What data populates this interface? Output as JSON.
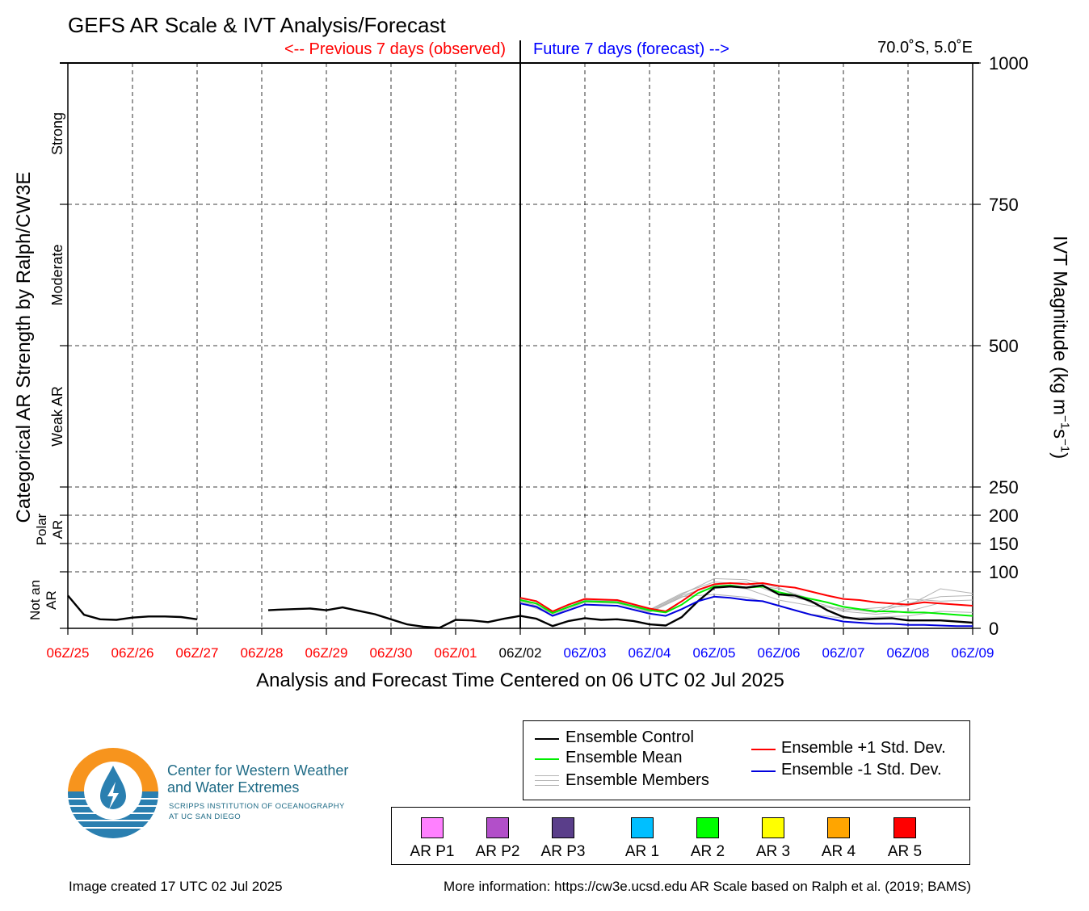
{
  "title": "GEFS AR Scale & IVT Analysis/Forecast",
  "header": {
    "previous_label": "<-- Previous 7 days (observed)",
    "future_label": "Future 7 days (forecast) -->",
    "location": "70.0˚S, 5.0˚E"
  },
  "colors": {
    "observed": "#ff0000",
    "forecast": "#0000ff",
    "current": "#000000"
  },
  "chart_data": {
    "type": "line",
    "title": "GEFS AR Scale & IVT Analysis/Forecast",
    "xlabel": "Analysis and Forecast Time Centered on 06 UTC 02 Jul 2025",
    "ylabel_left": "Categorical AR Strength by Ralph/CW3E",
    "ylabel_right": "IVT Magnitude (kg m⁻¹s⁻¹)",
    "x_ticks": [
      {
        "label": "06Z/25",
        "day": 0,
        "kind": "observed"
      },
      {
        "label": "06Z/26",
        "day": 1,
        "kind": "observed"
      },
      {
        "label": "06Z/27",
        "day": 2,
        "kind": "observed"
      },
      {
        "label": "06Z/28",
        "day": 3,
        "kind": "observed"
      },
      {
        "label": "06Z/29",
        "day": 4,
        "kind": "observed"
      },
      {
        "label": "06Z/30",
        "day": 5,
        "kind": "observed"
      },
      {
        "label": "06Z/01",
        "day": 6,
        "kind": "observed"
      },
      {
        "label": "06Z/02",
        "day": 7,
        "kind": "current"
      },
      {
        "label": "06Z/03",
        "day": 8,
        "kind": "forecast"
      },
      {
        "label": "06Z/04",
        "day": 9,
        "kind": "forecast"
      },
      {
        "label": "06Z/05",
        "day": 10,
        "kind": "forecast"
      },
      {
        "label": "06Z/06",
        "day": 11,
        "kind": "forecast"
      },
      {
        "label": "06Z/07",
        "day": 12,
        "kind": "forecast"
      },
      {
        "label": "06Z/08",
        "day": 13,
        "kind": "forecast"
      },
      {
        "label": "06Z/09",
        "day": 14,
        "kind": "forecast"
      }
    ],
    "y_ticks": [
      {
        "label": "1000",
        "value": 1000
      },
      {
        "label": "750",
        "value": 750
      },
      {
        "label": "500",
        "value": 500
      },
      {
        "label": "250",
        "value": 250
      },
      {
        "label": "200",
        "value": 200
      },
      {
        "label": "150",
        "value": 150
      },
      {
        "label": "100",
        "value": 100
      },
      {
        "label": "0",
        "value": 0
      }
    ],
    "y_gridlines": [
      100,
      150,
      200,
      250,
      500,
      750
    ],
    "ylim": [
      0,
      1000
    ],
    "xlim": [
      0,
      14
    ],
    "categories": [
      {
        "label": "Strong",
        "center": 875
      },
      {
        "label": "Moderate",
        "center": 625
      },
      {
        "label": "Weak AR",
        "center": 375
      },
      {
        "label": "Polar AR",
        "center": 175
      },
      {
        "label": "Not an AR",
        "center": 50
      }
    ],
    "series": [
      {
        "name": "Ensemble Members",
        "color": "#b4b4b4",
        "members": [
          [
            [
              7,
              54
            ],
            [
              7.5,
              30
            ],
            [
              8,
              52
            ],
            [
              8.5,
              50
            ],
            [
              9,
              33
            ],
            [
              9.5,
              62
            ],
            [
              10,
              82
            ],
            [
              10.5,
              78
            ],
            [
              11,
              70
            ],
            [
              11.5,
              52
            ],
            [
              12,
              38
            ],
            [
              12.5,
              30
            ],
            [
              13,
              52
            ],
            [
              13.5,
              48
            ],
            [
              14,
              50
            ]
          ],
          [
            [
              7,
              48
            ],
            [
              7.5,
              26
            ],
            [
              8,
              48
            ],
            [
              8.5,
              46
            ],
            [
              9,
              30
            ],
            [
              9.5,
              58
            ],
            [
              10,
              76
            ],
            [
              10.5,
              70
            ],
            [
              11,
              50
            ],
            [
              11.5,
              40
            ],
            [
              12,
              35
            ],
            [
              12.5,
              28
            ],
            [
              13,
              44
            ],
            [
              13.5,
              56
            ],
            [
              14,
              58
            ]
          ],
          [
            [
              7,
              46
            ],
            [
              7.5,
              24
            ],
            [
              8,
              46
            ],
            [
              8.5,
              44
            ],
            [
              9,
              28
            ],
            [
              9.5,
              55
            ],
            [
              10,
              78
            ],
            [
              10.5,
              82
            ],
            [
              11,
              60
            ],
            [
              11.5,
              48
            ],
            [
              12,
              32
            ],
            [
              12.5,
              36
            ],
            [
              13,
              40
            ],
            [
              13.5,
              70
            ],
            [
              14,
              62
            ]
          ],
          [
            [
              7,
              50
            ],
            [
              7.5,
              28
            ],
            [
              8,
              50
            ],
            [
              8.5,
              48
            ],
            [
              9,
              32
            ],
            [
              9.5,
              60
            ],
            [
              10,
              88
            ],
            [
              10.5,
              86
            ],
            [
              11,
              72
            ],
            [
              11.5,
              45
            ],
            [
              12,
              30
            ],
            [
              12.5,
              25
            ],
            [
              13,
              30
            ],
            [
              13.5,
              45
            ],
            [
              14,
              40
            ]
          ],
          [
            [
              7,
              52
            ],
            [
              7.5,
              27
            ],
            [
              8,
              49
            ],
            [
              8.5,
              47
            ],
            [
              9,
              29
            ],
            [
              9.5,
              56
            ],
            [
              10,
              60
            ],
            [
              10.5,
              55
            ],
            [
              11,
              40
            ],
            [
              11.5,
              25
            ],
            [
              12,
              18
            ],
            [
              12.5,
              20
            ],
            [
              13,
              22
            ],
            [
              13.5,
              30
            ],
            [
              14,
              28
            ]
          ]
        ]
      },
      {
        "name": "Ensemble +1 Std. Dev.",
        "color": "#ff0000",
        "points": [
          [
            7,
            54
          ],
          [
            7.25,
            48
          ],
          [
            7.5,
            30
          ],
          [
            7.75,
            42
          ],
          [
            8,
            52
          ],
          [
            8.5,
            50
          ],
          [
            9,
            35
          ],
          [
            9.25,
            30
          ],
          [
            9.5,
            48
          ],
          [
            9.75,
            68
          ],
          [
            10,
            78
          ],
          [
            10.25,
            80
          ],
          [
            10.5,
            78
          ],
          [
            10.75,
            80
          ],
          [
            11,
            75
          ],
          [
            11.25,
            72
          ],
          [
            11.5,
            65
          ],
          [
            11.75,
            58
          ],
          [
            12,
            52
          ],
          [
            12.25,
            50
          ],
          [
            12.5,
            46
          ],
          [
            12.75,
            44
          ],
          [
            13,
            42
          ],
          [
            13.25,
            46
          ],
          [
            13.5,
            44
          ],
          [
            13.75,
            42
          ],
          [
            14,
            40
          ]
        ]
      },
      {
        "name": "Ensemble Mean",
        "color": "#00ee00",
        "points": [
          [
            7,
            50
          ],
          [
            7.25,
            44
          ],
          [
            7.5,
            27
          ],
          [
            7.75,
            38
          ],
          [
            8,
            48
          ],
          [
            8.5,
            46
          ],
          [
            9,
            32
          ],
          [
            9.25,
            28
          ],
          [
            9.5,
            42
          ],
          [
            9.75,
            62
          ],
          [
            10,
            74
          ],
          [
            10.25,
            76
          ],
          [
            10.5,
            72
          ],
          [
            10.75,
            74
          ],
          [
            11,
            64
          ],
          [
            11.25,
            58
          ],
          [
            11.5,
            52
          ],
          [
            11.75,
            46
          ],
          [
            12,
            38
          ],
          [
            12.25,
            34
          ],
          [
            12.5,
            30
          ],
          [
            12.75,
            30
          ],
          [
            13,
            28
          ],
          [
            13.25,
            28
          ],
          [
            13.5,
            26
          ],
          [
            13.75,
            24
          ],
          [
            14,
            22
          ]
        ]
      },
      {
        "name": "Ensemble Control",
        "color": "#000000",
        "points": [
          [
            0,
            58
          ],
          [
            0.25,
            24
          ],
          [
            0.5,
            16
          ],
          [
            0.75,
            15
          ],
          [
            1,
            19
          ],
          [
            1.25,
            21
          ],
          [
            1.5,
            21
          ],
          [
            1.75,
            20
          ],
          [
            2,
            16
          ],
          [
            null,
            null
          ],
          [
            3.1,
            32
          ],
          [
            3.25,
            33
          ],
          [
            3.5,
            34
          ],
          [
            3.75,
            35
          ],
          [
            4,
            32
          ],
          [
            4.25,
            37
          ],
          [
            4.5,
            31
          ],
          [
            4.75,
            25
          ],
          [
            5,
            16
          ],
          [
            5.25,
            7
          ],
          [
            5.5,
            3
          ],
          [
            5.75,
            1
          ],
          [
            6,
            15
          ],
          [
            6.25,
            14
          ],
          [
            6.5,
            11
          ],
          [
            6.75,
            17
          ],
          [
            7,
            22
          ],
          [
            7.25,
            17
          ],
          [
            7.5,
            4
          ],
          [
            7.75,
            13
          ],
          [
            8,
            18
          ],
          [
            8.25,
            15
          ],
          [
            8.5,
            16
          ],
          [
            8.75,
            13
          ],
          [
            9,
            7
          ],
          [
            9.25,
            5
          ],
          [
            9.5,
            20
          ],
          [
            9.75,
            48
          ],
          [
            10,
            72
          ],
          [
            10.25,
            74
          ],
          [
            10.5,
            72
          ],
          [
            10.75,
            76
          ],
          [
            11,
            60
          ],
          [
            11.25,
            58
          ],
          [
            11.5,
            48
          ],
          [
            11.75,
            32
          ],
          [
            12,
            20
          ],
          [
            12.25,
            16
          ],
          [
            12.5,
            17
          ],
          [
            12.75,
            18
          ],
          [
            13,
            14
          ],
          [
            13.25,
            14
          ],
          [
            13.5,
            14
          ],
          [
            13.75,
            12
          ],
          [
            14,
            10
          ]
        ]
      },
      {
        "name": "Ensemble -1 Std. Dev.",
        "color": "#0000dd",
        "points": [
          [
            7,
            44
          ],
          [
            7.25,
            38
          ],
          [
            7.5,
            22
          ],
          [
            7.75,
            32
          ],
          [
            8,
            42
          ],
          [
            8.5,
            40
          ],
          [
            9,
            26
          ],
          [
            9.25,
            22
          ],
          [
            9.5,
            34
          ],
          [
            9.75,
            48
          ],
          [
            10,
            56
          ],
          [
            10.25,
            54
          ],
          [
            10.5,
            50
          ],
          [
            10.75,
            48
          ],
          [
            11,
            40
          ],
          [
            11.25,
            32
          ],
          [
            11.5,
            24
          ],
          [
            11.75,
            18
          ],
          [
            12,
            12
          ],
          [
            12.25,
            10
          ],
          [
            12.5,
            8
          ],
          [
            12.75,
            8
          ],
          [
            13,
            6
          ],
          [
            13.25,
            6
          ],
          [
            13.5,
            5
          ],
          [
            13.75,
            4
          ],
          [
            14,
            4
          ]
        ]
      }
    ]
  },
  "legend": {
    "control": "Ensemble Control",
    "mean": "Ensemble Mean",
    "members": "Ensemble Members",
    "plus_std": "Ensemble +1 Std. Dev.",
    "minus_std": "Ensemble -1 Std. Dev."
  },
  "ar_scale": [
    {
      "label": "AR P1",
      "color": "#ff80ff"
    },
    {
      "label": "AR P2",
      "color": "#b24fc9"
    },
    {
      "label": "AR P3",
      "color": "#5a3e8a"
    },
    {
      "label": "AR 1",
      "color": "#00bfff"
    },
    {
      "label": "AR 2",
      "color": "#00ff00"
    },
    {
      "label": "AR 3",
      "color": "#ffff00"
    },
    {
      "label": "AR 4",
      "color": "#ffa500"
    },
    {
      "label": "AR 5",
      "color": "#ff0000"
    }
  ],
  "logo": {
    "name_line1": "Center for Western Weather",
    "name_line2": "and Water Extremes",
    "sub_line1": "SCRIPPS INSTITUTION OF OCEANOGRAPHY",
    "sub_line2": "AT UC SAN DIEGO",
    "orange": "#f7941d",
    "blue": "#2a7fb0",
    "text_color": "#1f6b86"
  },
  "footer": {
    "created": "Image created 17 UTC 02 Jul 2025",
    "info": "More information: https://cw3e.ucsd.edu AR Scale based on Ralph et al. (2019; BAMS)"
  }
}
